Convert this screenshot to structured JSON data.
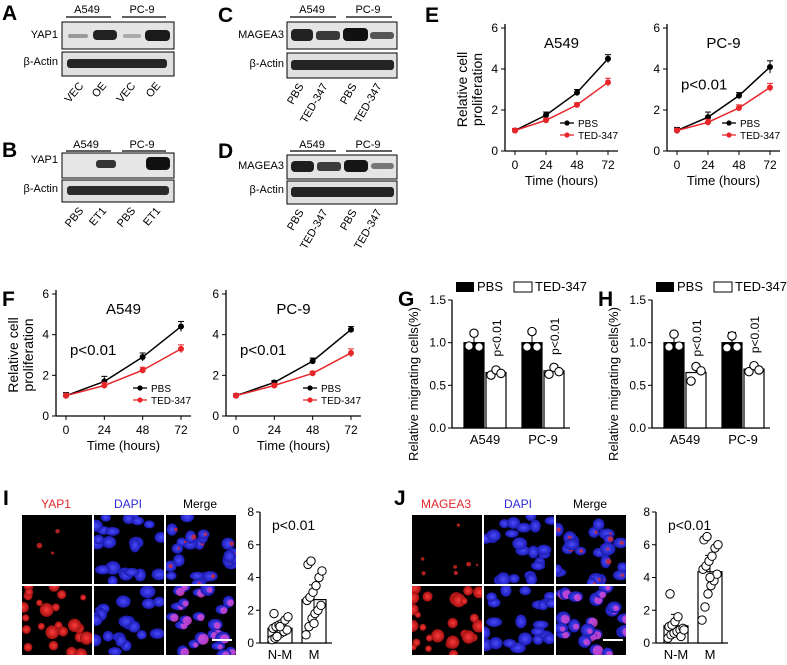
{
  "panel_letters": {
    "A": "A",
    "B": "B",
    "C": "C",
    "D": "D",
    "E": "E",
    "F": "F",
    "G": "G",
    "H": "H",
    "I": "I",
    "J": "J"
  },
  "colors": {
    "pbs": "#000000",
    "ted": "#e8262a",
    "red_stain": "#e0282a",
    "blue_stain": "#2a2ad8"
  },
  "blots": {
    "A": {
      "cells": [
        "A549",
        "PC-9"
      ],
      "proteins": [
        "YAP1",
        "β-Actin"
      ],
      "lanes": [
        "VEC",
        "OE",
        "VEC",
        "OE"
      ]
    },
    "B": {
      "cells": [
        "A549",
        "PC-9"
      ],
      "proteins": [
        "YAP1",
        "β-Actin"
      ],
      "lanes": [
        "PBS",
        "ET1",
        "PBS",
        "ET1"
      ]
    },
    "C": {
      "cells": [
        "A549",
        "PC-9"
      ],
      "proteins": [
        "MAGEA3",
        "β-Actin"
      ],
      "lanes": [
        "PBS",
        "TED-347",
        "PBS",
        "TED-347"
      ]
    },
    "D": {
      "cells": [
        "A549",
        "PC-9"
      ],
      "proteins": [
        "MAGEA3",
        "β-Actin"
      ],
      "lanes": [
        "PBS",
        "TED-347",
        "PBS",
        "TED-347"
      ]
    }
  },
  "prolif_common": {
    "ylabel": "Relative cell proliferation",
    "ylabel_line1": "Relative cell",
    "ylabel_line2": "proliferation",
    "xlabel": "Time (hours)",
    "series_names": [
      "PBS",
      "TED-347"
    ],
    "x_ticks": [
      "0",
      "24",
      "48",
      "72"
    ],
    "y_ticks": [
      "0",
      "2",
      "4",
      "6"
    ]
  },
  "bar_common": {
    "ylabel": "Relative migrating cells(%)",
    "series_names": [
      "PBS",
      "TED-347"
    ],
    "categories": [
      "A549",
      "PC-9"
    ],
    "y_ticks": [
      "0.0",
      "0.5",
      "1.0",
      "1.5"
    ]
  },
  "if_panels": {
    "I": {
      "stains": [
        "YAP1",
        "DAPI",
        "Merge"
      ]
    },
    "J": {
      "stains": [
        "MAGEA3",
        "DAPI",
        "Merge"
      ]
    }
  },
  "chart_data": [
    {
      "id": "E-A549",
      "type": "line",
      "title": "A549",
      "pvalue": "",
      "x": [
        0,
        24,
        48,
        72
      ],
      "xlabel": "Time (hours)",
      "ylabel": "Relative cell proliferation",
      "ylim": [
        0,
        6
      ],
      "series": [
        {
          "name": "PBS",
          "values": [
            1.0,
            1.75,
            2.85,
            4.5
          ],
          "err": [
            0.1,
            0.15,
            0.15,
            0.2
          ]
        },
        {
          "name": "TED-347",
          "values": [
            1.0,
            1.5,
            2.25,
            3.35
          ],
          "err": [
            0.1,
            0.1,
            0.1,
            0.2
          ]
        }
      ]
    },
    {
      "id": "E-PC9",
      "type": "line",
      "title": "PC-9",
      "pvalue": "p<0.01",
      "x": [
        0,
        24,
        48,
        72
      ],
      "xlabel": "Time (hours)",
      "ylabel": "Relative cell proliferation",
      "ylim": [
        0,
        6
      ],
      "series": [
        {
          "name": "PBS",
          "values": [
            1.0,
            1.65,
            2.7,
            4.1
          ],
          "err": [
            0.15,
            0.25,
            0.15,
            0.3
          ]
        },
        {
          "name": "TED-347",
          "values": [
            1.0,
            1.4,
            2.1,
            3.1
          ],
          "err": [
            0.1,
            0.15,
            0.15,
            0.2
          ]
        }
      ]
    },
    {
      "id": "F-A549",
      "type": "line",
      "title": "A549",
      "pvalue": "p<0.01",
      "x": [
        0,
        24,
        48,
        72
      ],
      "xlabel": "Time (hours)",
      "ylabel": "Relative cell proliferation",
      "ylim": [
        0,
        6
      ],
      "series": [
        {
          "name": "PBS",
          "values": [
            1.0,
            1.7,
            2.9,
            4.4
          ],
          "err": [
            0.15,
            0.25,
            0.2,
            0.25
          ]
        },
        {
          "name": "TED-347",
          "values": [
            1.0,
            1.5,
            2.25,
            3.3
          ],
          "err": [
            0.1,
            0.15,
            0.15,
            0.2
          ]
        }
      ]
    },
    {
      "id": "F-PC9",
      "type": "line",
      "title": "PC-9",
      "pvalue": "p<0.01",
      "x": [
        0,
        24,
        48,
        72
      ],
      "xlabel": "Time (hours)",
      "ylabel": "Relative cell proliferation",
      "ylim": [
        0,
        6
      ],
      "series": [
        {
          "name": "PBS",
          "values": [
            1.0,
            1.65,
            2.7,
            4.25
          ],
          "err": [
            0.1,
            0.1,
            0.15,
            0.15
          ]
        },
        {
          "name": "TED-347",
          "values": [
            1.0,
            1.5,
            2.1,
            3.1
          ],
          "err": [
            0.1,
            0.1,
            0.1,
            0.2
          ]
        }
      ]
    },
    {
      "id": "G",
      "type": "bar",
      "categories": [
        "A549",
        "PC-9"
      ],
      "ylabel": "Relative migrating cells(%)",
      "ylim": [
        0,
        1.5
      ],
      "series": [
        {
          "name": "PBS",
          "values": [
            1.0,
            1.0
          ],
          "err": [
            0.08,
            0.1
          ],
          "points": [
            [
              0.96,
              1.11,
              0.95
            ],
            [
              0.95,
              1.13,
              0.95
            ]
          ]
        },
        {
          "name": "TED-347",
          "values": [
            0.65,
            0.67
          ],
          "err": [
            0.04,
            0.05
          ],
          "points": [
            [
              0.62,
              0.68,
              0.64
            ],
            [
              0.63,
              0.71,
              0.66
            ]
          ],
          "annotation": "p<0.01"
        }
      ]
    },
    {
      "id": "H",
      "type": "bar",
      "categories": [
        "A549",
        "PC-9"
      ],
      "ylabel": "Relative migrating cells(%)",
      "ylim": [
        0,
        1.5
      ],
      "series": [
        {
          "name": "PBS",
          "values": [
            1.0,
            1.0
          ],
          "err": [
            0.12,
            0.12
          ],
          "points": [
            [
              0.95,
              1.1,
              0.96
            ],
            [
              0.94,
              1.08,
              0.95
            ]
          ]
        },
        {
          "name": "TED-347",
          "values": [
            0.65,
            0.69
          ],
          "err": [
            0.1,
            0.05
          ],
          "points": [
            [
              0.55,
              0.72,
              0.67
            ],
            [
              0.66,
              0.73,
              0.68
            ]
          ],
          "annotation": "p<0.01"
        }
      ]
    },
    {
      "id": "I-plot",
      "type": "scatter",
      "categories": [
        "N-M",
        "M"
      ],
      "pvalue": "p<0.01",
      "ylim": [
        0,
        8
      ],
      "means": [
        0.9,
        2.65
      ],
      "err": [
        0.35,
        0.9
      ],
      "points": [
        [
          0.2,
          0.3,
          0.5,
          0.6,
          0.7,
          0.8,
          0.9,
          1.0,
          1.1,
          1.2,
          1.4,
          1.6,
          1.8,
          0.4,
          1.0
        ],
        [
          0.5,
          1.0,
          1.5,
          1.8,
          2.0,
          2.3,
          2.6,
          2.8,
          3.1,
          3.5,
          4.0,
          4.4,
          4.8,
          5.0,
          1.2
        ]
      ]
    },
    {
      "id": "J-plot",
      "type": "scatter",
      "categories": [
        "N-M",
        "M"
      ],
      "pvalue": "p<0.01",
      "ylim": [
        0,
        8
      ],
      "means": [
        1.05,
        4.35
      ],
      "err": [
        0.7,
        1.0
      ],
      "points": [
        [
          0.3,
          0.5,
          0.6,
          0.7,
          0.8,
          0.9,
          1.0,
          1.1,
          1.3,
          1.6,
          0.4,
          0.8,
          3.0
        ],
        [
          1.4,
          2.2,
          3.0,
          3.5,
          3.8,
          4.2,
          4.5,
          4.7,
          5.0,
          5.3,
          5.8,
          6.0,
          6.3,
          6.5,
          4.0
        ]
      ]
    }
  ]
}
